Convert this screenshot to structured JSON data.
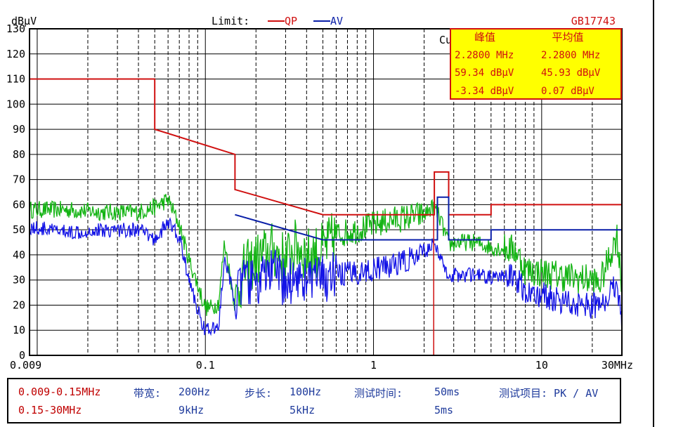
{
  "header": {
    "unit": "dBμV",
    "limit_label": "Limit:",
    "qp_label": "QP",
    "av_label": "AV",
    "standard": "GB17743"
  },
  "marker_box": {
    "hidden_label": "Cu",
    "peak_title": "峰值",
    "avg_title": "平均值",
    "peak_freq": "2.2800 MHz",
    "avg_freq": "2.2800 MHz",
    "peak_level": "59.34 dBμV",
    "avg_level": "45.93 dBμV",
    "peak_delta": "-3.34 dBμV",
    "avg_delta": "0.07 dBμV"
  },
  "info": {
    "band1": "0.009-0.15MHz",
    "band2": "0.15-30MHz",
    "bw_label": "带宽:",
    "bw1": "200Hz",
    "bw2": "9kHz",
    "step_label": "步长:",
    "step1": "100Hz",
    "step2": "5kHz",
    "time_label": "测试时间:",
    "time1": "50ms",
    "time2": "5ms",
    "item_label": "测试项目: PK / AV"
  },
  "colors": {
    "qp": "#d01010",
    "av_limit": "#0a1fa8",
    "peak_trace": "#14b414",
    "avg_trace": "#1414e6",
    "marker": "#d01010",
    "marker_box_fill": "#ffff00",
    "marker_box_border": "#d01010"
  },
  "chart_data": {
    "type": "line",
    "x_scale": "log",
    "xlim": [
      0.009,
      30
    ],
    "ylim": [
      0,
      130
    ],
    "xlabel": "",
    "ylabel": "dBμV",
    "x_ticks": [
      0.009,
      0.1,
      1,
      10,
      30
    ],
    "x_tick_labels": [
      "0.009",
      "0.1",
      "1",
      "10",
      "30MHz"
    ],
    "y_ticks": [
      0,
      10,
      20,
      30,
      40,
      50,
      60,
      70,
      80,
      90,
      100,
      110,
      120,
      130
    ],
    "grid": true,
    "marker_x": 2.28,
    "series": [
      {
        "name": "QP",
        "kind": "limit",
        "x": [
          0.009,
          0.05,
          0.05,
          0.15,
          0.15,
          0.5,
          2.3,
          2.3,
          2.8,
          2.8,
          5.0,
          5.0,
          30
        ],
        "y": [
          110,
          110,
          90,
          80,
          66,
          56,
          56,
          73,
          73,
          56,
          56,
          60,
          60
        ]
      },
      {
        "name": "AV",
        "kind": "limit",
        "x": [
          0.15,
          0.5,
          2.4,
          2.4,
          2.8,
          2.8,
          5.0,
          5.0,
          30
        ],
        "y": [
          56,
          46,
          46,
          63,
          63,
          46,
          46,
          50,
          50
        ]
      },
      {
        "kind": "peak",
        "x": [
          0.009,
          0.015,
          0.025,
          0.04,
          0.05,
          0.06,
          0.07,
          0.08,
          0.09,
          0.1,
          0.11,
          0.12,
          0.13,
          0.15,
          0.17,
          0.2,
          0.25,
          0.3,
          0.35,
          0.4,
          0.5,
          0.6,
          0.8,
          1.0,
          1.3,
          1.6,
          2.0,
          2.28,
          2.5,
          2.8,
          3.2,
          4,
          5,
          7,
          8,
          10,
          15,
          20,
          22,
          25,
          28,
          30
        ],
        "y": [
          58,
          58,
          57,
          57,
          59,
          62,
          52,
          38,
          28,
          19,
          19,
          21,
          45,
          20,
          34,
          38,
          42,
          38,
          44,
          40,
          42,
          48,
          50,
          52,
          54,
          55,
          56,
          59.34,
          54,
          44,
          45,
          45,
          43,
          42,
          34,
          33,
          31,
          30,
          28,
          38,
          48,
          28
        ]
      },
      {
        "kind": "average",
        "x": [
          0.009,
          0.015,
          0.025,
          0.04,
          0.05,
          0.06,
          0.07,
          0.08,
          0.09,
          0.1,
          0.11,
          0.12,
          0.13,
          0.15,
          0.17,
          0.2,
          0.25,
          0.3,
          0.35,
          0.4,
          0.5,
          0.6,
          0.8,
          1.0,
          1.3,
          1.6,
          2.0,
          2.28,
          2.5,
          2.8,
          3.2,
          4,
          5,
          7,
          8,
          10,
          15,
          20,
          22,
          25,
          28,
          30
        ],
        "y": [
          51,
          49,
          50,
          50,
          46,
          53,
          47,
          30,
          18,
          10,
          10,
          12,
          38,
          22,
          30,
          28,
          34,
          28,
          32,
          30,
          30,
          32,
          33,
          34,
          36,
          38,
          40,
          45.93,
          38,
          32,
          32,
          32,
          31,
          31,
          25,
          24,
          21,
          20,
          19,
          24,
          30,
          12
        ]
      }
    ]
  }
}
